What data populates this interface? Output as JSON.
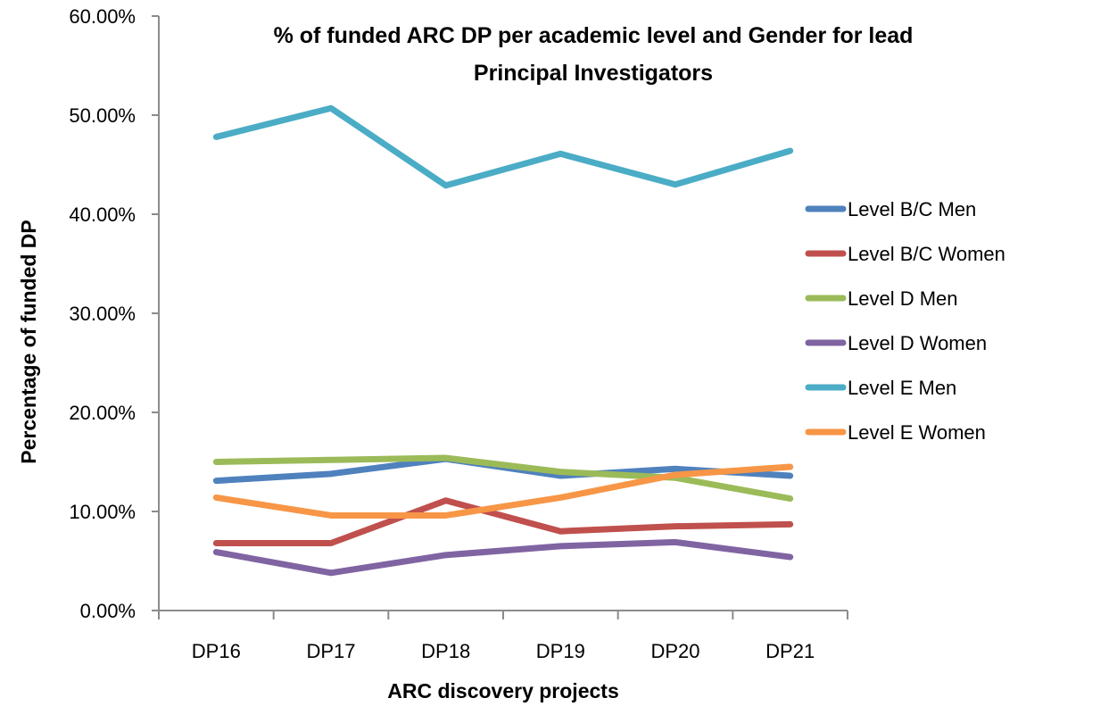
{
  "chart_data": {
    "type": "line",
    "title": "% of funded ARC DP per academic level and Gender for lead Principal Investigators",
    "title_lines": [
      "% of funded ARC DP per academic level and Gender for lead",
      "Principal Investigators"
    ],
    "xlabel": "ARC discovery projects",
    "ylabel": "Percentage of funded DP",
    "categories": [
      "DP16",
      "DP17",
      "DP18",
      "DP19",
      "DP20",
      "DP21"
    ],
    "ylim": [
      0,
      60
    ],
    "yticks": [
      0,
      10,
      20,
      30,
      40,
      50,
      60
    ],
    "ytick_labels": [
      "0.00%",
      "10.00%",
      "20.00%",
      "30.00%",
      "40.00%",
      "50.00%",
      "60.00%"
    ],
    "grid": false,
    "legend_position": "right",
    "series": [
      {
        "name": "Level B/C Men",
        "color": "#4F81BD",
        "values": [
          13.1,
          13.8,
          15.3,
          13.6,
          14.3,
          13.6
        ]
      },
      {
        "name": "Level B/C Women",
        "color": "#C0504D",
        "values": [
          6.8,
          6.8,
          11.1,
          8.0,
          8.5,
          8.7
        ]
      },
      {
        "name": "Level D Men",
        "color": "#9BBB59",
        "values": [
          15.0,
          15.2,
          15.4,
          14.0,
          13.4,
          11.3
        ]
      },
      {
        "name": "Level D Women",
        "color": "#8064A2",
        "values": [
          5.9,
          3.8,
          5.6,
          6.5,
          6.9,
          5.4
        ]
      },
      {
        "name": "Level E Men",
        "color": "#4BACC6",
        "values": [
          47.8,
          50.7,
          42.9,
          46.1,
          43.0,
          46.4
        ]
      },
      {
        "name": "Level E Women",
        "color": "#F79646",
        "values": [
          11.4,
          9.6,
          9.6,
          11.4,
          13.7,
          14.5
        ]
      }
    ]
  }
}
